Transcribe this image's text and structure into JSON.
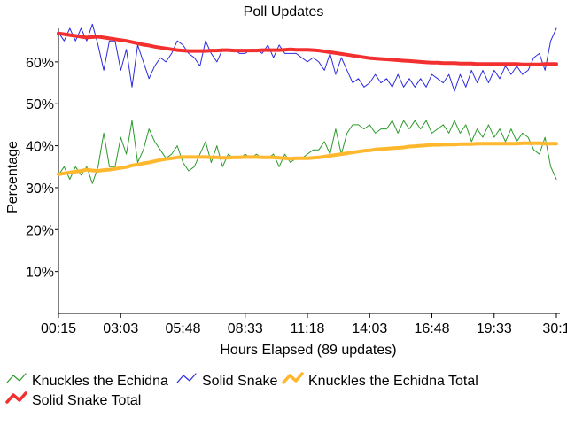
{
  "chart_data": {
    "type": "line",
    "title": "Poll Updates",
    "xlabel": "Hours Elapsed (89 updates)",
    "ylabel": "Percentage",
    "ylim": [
      0,
      68
    ],
    "y_ticks": [
      10,
      20,
      30,
      40,
      50,
      60
    ],
    "y_tick_labels": [
      "10%",
      "20%",
      "30%",
      "40%",
      "50%",
      "60%"
    ],
    "x_tick_labels": [
      "00:15",
      "03:03",
      "05:48",
      "08:33",
      "11:18",
      "14:03",
      "16:48",
      "19:33",
      "30:1"
    ],
    "x_tick_indices": [
      0,
      11,
      22,
      33,
      44,
      55,
      66,
      77,
      88
    ],
    "grid": false,
    "legend_position": "bottom",
    "series": [
      {
        "name": "Knuckles the Echidna",
        "color": "#2a9a2a",
        "values": [
          33,
          35,
          32,
          35,
          33,
          35,
          31,
          35,
          43,
          35,
          35,
          42,
          38,
          46,
          36,
          39,
          44,
          41,
          39,
          37,
          38,
          40,
          36,
          34,
          35,
          38,
          41,
          36,
          40,
          35,
          38,
          37,
          37,
          38,
          37,
          38,
          37,
          37,
          38,
          35,
          38,
          36,
          37,
          37,
          38,
          39,
          39,
          41,
          38,
          44,
          38,
          43,
          45,
          45,
          44,
          45,
          43,
          44,
          44,
          46,
          43,
          46,
          44,
          46,
          44,
          46,
          43,
          44,
          45,
          43,
          46,
          43,
          45,
          41,
          44,
          42,
          45,
          42,
          44,
          41,
          44,
          41,
          43,
          42,
          39,
          38,
          42,
          35,
          32
        ]
      },
      {
        "name": "Solid Snake",
        "color": "#2a2ae0",
        "values": [
          67,
          65,
          68,
          65,
          68,
          65,
          69,
          64,
          58,
          65,
          65,
          58,
          63,
          54,
          64,
          60,
          56,
          59,
          61,
          60,
          62,
          65,
          64,
          62,
          61,
          59,
          65,
          62,
          60,
          63,
          63,
          63,
          62,
          62,
          63,
          63,
          62,
          64,
          61,
          64,
          62,
          62,
          62,
          61,
          60,
          61,
          60,
          58,
          62,
          57,
          61,
          58,
          55,
          56,
          54,
          55,
          57,
          55,
          56,
          54,
          57,
          54,
          56,
          54,
          56,
          54,
          57,
          56,
          55,
          57,
          53,
          57,
          54,
          58,
          55,
          58,
          55,
          58,
          56,
          59,
          57,
          59,
          57,
          58,
          61,
          62,
          58,
          65,
          68
        ]
      },
      {
        "name": "Knuckles the Echidna Total",
        "color": "#ffb82e",
        "values": [
          33.2,
          33.4,
          33.6,
          33.8,
          34.0,
          34.3,
          34.1,
          34.0,
          34.2,
          34.3,
          34.5,
          34.7,
          34.9,
          35.3,
          35.5,
          35.8,
          36.0,
          36.3,
          36.6,
          36.8,
          37.0,
          37.2,
          37.3,
          37.3,
          37.3,
          37.3,
          37.3,
          37.2,
          37.2,
          37.1,
          37.1,
          37.2,
          37.2,
          37.3,
          37.3,
          37.3,
          37.2,
          37.2,
          37.2,
          37.1,
          37.0,
          36.9,
          37.0,
          37.0,
          37.0,
          37.1,
          37.2,
          37.4,
          37.6,
          37.8,
          38.0,
          38.2,
          38.4,
          38.6,
          38.8,
          38.9,
          39.1,
          39.2,
          39.3,
          39.4,
          39.5,
          39.6,
          39.8,
          39.9,
          40.0,
          40.1,
          40.2,
          40.2,
          40.3,
          40.3,
          40.3,
          40.4,
          40.4,
          40.4,
          40.5,
          40.5,
          40.5,
          40.5,
          40.5,
          40.5,
          40.5,
          40.5,
          40.6,
          40.6,
          40.6,
          40.6,
          40.5,
          40.5,
          40.5
        ]
      },
      {
        "name": "Solid Snake Total",
        "color": "#f23030",
        "values": [
          66.8,
          66.6,
          66.4,
          66.2,
          66.0,
          65.8,
          65.9,
          66.0,
          65.8,
          65.6,
          65.4,
          65.2,
          65.0,
          64.7,
          64.4,
          64.1,
          63.9,
          63.6,
          63.4,
          63.2,
          63.0,
          62.8,
          62.7,
          62.6,
          62.6,
          62.6,
          62.6,
          62.7,
          62.7,
          62.8,
          62.8,
          62.7,
          62.7,
          62.7,
          62.7,
          62.7,
          62.8,
          62.8,
          62.8,
          62.8,
          62.9,
          63.0,
          62.9,
          62.9,
          62.9,
          62.8,
          62.7,
          62.5,
          62.3,
          62.1,
          61.9,
          61.7,
          61.5,
          61.3,
          61.1,
          60.9,
          60.8,
          60.7,
          60.6,
          60.5,
          60.4,
          60.3,
          60.2,
          60.1,
          60.0,
          59.9,
          59.8,
          59.8,
          59.7,
          59.7,
          59.7,
          59.6,
          59.6,
          59.6,
          59.5,
          59.5,
          59.5,
          59.5,
          59.5,
          59.5,
          59.5,
          59.5,
          59.4,
          59.4,
          59.4,
          59.4,
          59.5,
          59.5,
          59.5
        ]
      }
    ]
  }
}
